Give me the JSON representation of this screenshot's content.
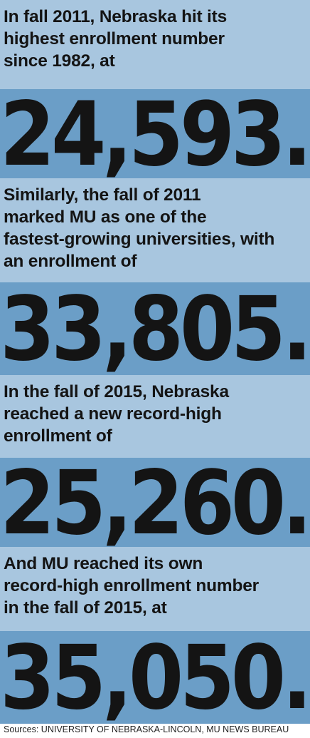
{
  "stats": [
    {
      "text": "In fall 2011, Nebraska hit its\nhighest enrollment number\nsince 1982, at",
      "figure": "24,593."
    },
    {
      "text": "Similarly, the fall of 2011\nmarked MU as one of the\nfastest-growing universities, with\nan enrollment of",
      "figure": "33,805."
    },
    {
      "text": "In the fall of 2015, Nebraska\nreached a new record-high\nenrollment of",
      "figure": "25,260."
    },
    {
      "text": "And MU reached its own\nrecord-high enrollment number\nin the fall of 2015, at",
      "figure": "35,050."
    }
  ],
  "source": "Sources: UNIVERSITY OF NEBRASKA-LINCOLN, MU NEWS BUREAU",
  "colors": {
    "light_band": "#a8c6df",
    "dark_band": "#6b9ec7",
    "text": "#141414"
  }
}
